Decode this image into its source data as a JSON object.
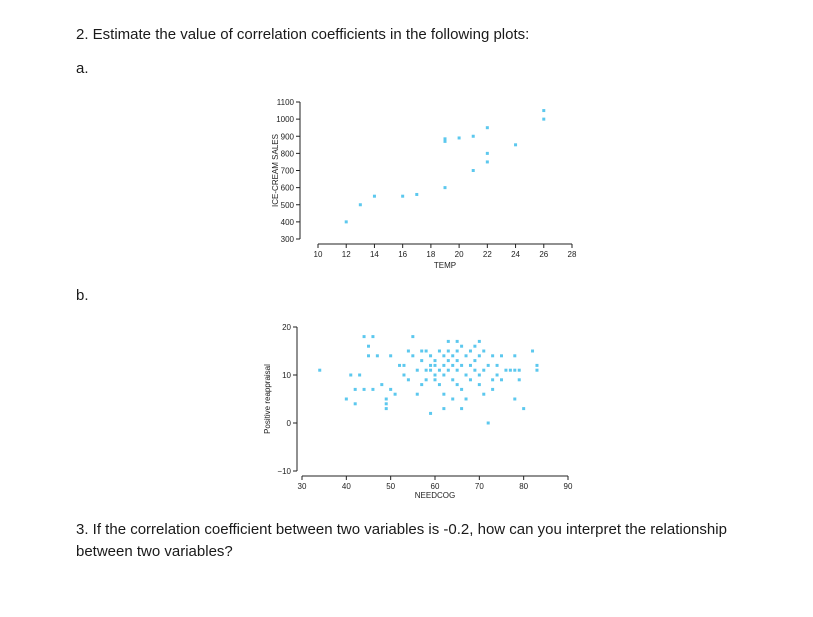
{
  "question2": "2. Estimate the value of correlation coefficients in the following plots:",
  "label_a": "a.",
  "label_b": "b.",
  "question3": "3. If the correlation coefficient between two variables is -0.2, how can you interpret the relationship between two variables?",
  "chart_data": [
    {
      "type": "scatter",
      "xlabel": "TEMP",
      "ylabel": "ICE-CREAM SALES",
      "xlim": [
        10,
        28
      ],
      "ylim": [
        300,
        1100
      ],
      "xticks": [
        10,
        12,
        14,
        16,
        18,
        20,
        22,
        24,
        26,
        28
      ],
      "yticks": [
        300,
        400,
        500,
        600,
        700,
        800,
        900,
        1000,
        1100
      ],
      "color": "#5cc8ee",
      "points": [
        [
          12,
          400
        ],
        [
          13,
          500
        ],
        [
          14,
          550
        ],
        [
          16,
          550
        ],
        [
          17,
          560
        ],
        [
          19,
          600
        ],
        [
          19,
          870
        ],
        [
          19,
          885
        ],
        [
          20,
          890
        ],
        [
          21,
          700
        ],
        [
          21,
          900
        ],
        [
          22,
          750
        ],
        [
          22,
          800
        ],
        [
          22,
          950
        ],
        [
          24,
          850
        ],
        [
          26,
          1000
        ],
        [
          26,
          1050
        ]
      ]
    },
    {
      "type": "scatter",
      "xlabel": "NEEDCOG",
      "ylabel": "Positive reappraisal",
      "xlim": [
        30,
        90
      ],
      "ylim": [
        -10,
        20
      ],
      "xticks": [
        30,
        40,
        50,
        60,
        70,
        80,
        90
      ],
      "yticks": [
        -10,
        0,
        10,
        20
      ],
      "yticklabels": [
        "−10",
        "0",
        "10",
        "20"
      ],
      "color": "#5cc8ee",
      "points": [
        [
          34,
          11
        ],
        [
          40,
          5
        ],
        [
          41,
          10
        ],
        [
          42,
          4
        ],
        [
          42,
          7
        ],
        [
          43,
          10
        ],
        [
          44,
          7
        ],
        [
          44,
          18
        ],
        [
          45,
          16
        ],
        [
          46,
          18
        ],
        [
          45,
          14
        ],
        [
          46,
          7
        ],
        [
          47,
          14
        ],
        [
          48,
          8
        ],
        [
          49,
          5
        ],
        [
          49,
          3
        ],
        [
          49,
          4
        ],
        [
          50,
          7
        ],
        [
          50,
          14
        ],
        [
          51,
          6
        ],
        [
          52,
          12
        ],
        [
          53,
          12
        ],
        [
          53,
          10
        ],
        [
          54,
          15
        ],
        [
          54,
          9
        ],
        [
          55,
          14
        ],
        [
          55,
          18
        ],
        [
          56,
          11
        ],
        [
          56,
          6
        ],
        [
          57,
          15
        ],
        [
          57,
          13
        ],
        [
          57,
          8
        ],
        [
          58,
          11
        ],
        [
          58,
          15
        ],
        [
          58,
          9
        ],
        [
          59,
          11
        ],
        [
          59,
          12
        ],
        [
          59,
          14
        ],
        [
          59,
          2
        ],
        [
          60,
          10
        ],
        [
          60,
          12
        ],
        [
          60,
          13
        ],
        [
          60,
          9
        ],
        [
          61,
          15
        ],
        [
          61,
          11
        ],
        [
          61,
          8
        ],
        [
          62,
          14
        ],
        [
          62,
          12
        ],
        [
          62,
          10
        ],
        [
          62,
          6
        ],
        [
          62,
          3
        ],
        [
          63,
          15
        ],
        [
          63,
          13
        ],
        [
          63,
          11
        ],
        [
          63,
          17
        ],
        [
          64,
          14
        ],
        [
          64,
          9
        ],
        [
          64,
          12
        ],
        [
          64,
          5
        ],
        [
          65,
          15
        ],
        [
          65,
          13
        ],
        [
          65,
          11
        ],
        [
          65,
          8
        ],
        [
          65,
          17
        ],
        [
          66,
          16
        ],
        [
          66,
          12
        ],
        [
          66,
          7
        ],
        [
          66,
          3
        ],
        [
          67,
          14
        ],
        [
          67,
          10
        ],
        [
          67,
          5
        ],
        [
          68,
          12
        ],
        [
          68,
          9
        ],
        [
          68,
          15
        ],
        [
          69,
          13
        ],
        [
          69,
          11
        ],
        [
          69,
          16
        ],
        [
          70,
          17
        ],
        [
          70,
          14
        ],
        [
          70,
          10
        ],
        [
          70,
          8
        ],
        [
          71,
          15
        ],
        [
          71,
          11
        ],
        [
          71,
          6
        ],
        [
          72,
          12
        ],
        [
          72,
          0
        ],
        [
          73,
          14
        ],
        [
          73,
          9
        ],
        [
          73,
          7
        ],
        [
          74,
          12
        ],
        [
          74,
          10
        ],
        [
          75,
          14
        ],
        [
          75,
          9
        ],
        [
          76,
          11
        ],
        [
          77,
          11
        ],
        [
          78,
          11
        ],
        [
          78,
          14
        ],
        [
          78,
          5
        ],
        [
          79,
          9
        ],
        [
          79,
          11
        ],
        [
          80,
          3
        ],
        [
          82,
          15
        ],
        [
          83,
          12
        ],
        [
          83,
          11
        ]
      ]
    }
  ]
}
